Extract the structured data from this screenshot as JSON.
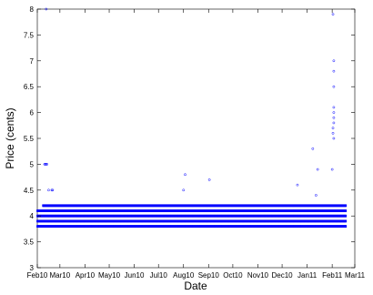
{
  "chart_data": {
    "type": "scatter",
    "xlabel": "Date",
    "ylabel": "Price (cents)",
    "ylim": [
      3,
      8
    ],
    "y_ticks": [
      "3",
      "3.5",
      "4",
      "4.5",
      "5",
      "5.5",
      "6",
      "6.5",
      "7",
      "7.5",
      "8"
    ],
    "xlim": [
      "2010-02-01",
      "2011-03-01"
    ],
    "x_ticks": [
      "Feb10",
      "Mar10",
      "Apr10",
      "May10",
      "Jun10",
      "Jul10",
      "Aug10",
      "Sep10",
      "Oct10",
      "Nov10",
      "Dec10",
      "Jan11",
      "Feb11",
      "Mar11"
    ],
    "x_tick_dates": [
      "2010-02-01",
      "2010-03-01",
      "2010-04-01",
      "2010-05-01",
      "2010-06-01",
      "2010-07-01",
      "2010-08-01",
      "2010-09-01",
      "2010-10-01",
      "2010-11-01",
      "2010-12-01",
      "2011-01-01",
      "2011-02-01",
      "2011-03-01"
    ],
    "grid": false,
    "marker_color": "#0000ff",
    "series": [
      {
        "points": [
          {
            "x": "2010-02-12",
            "y": 8.0
          },
          {
            "x": "2010-02-10",
            "y": 5.0
          },
          {
            "x": "2010-02-11",
            "y": 5.0
          },
          {
            "x": "2010-02-12",
            "y": 5.0
          },
          {
            "x": "2010-02-13",
            "y": 5.0
          },
          {
            "x": "2010-02-15",
            "y": 4.5
          },
          {
            "x": "2010-02-19",
            "y": 4.5
          },
          {
            "x": "2010-02-20",
            "y": 4.5
          },
          {
            "x": "2010-08-01",
            "y": 4.5
          },
          {
            "x": "2010-08-03",
            "y": 4.8
          },
          {
            "x": "2010-09-02",
            "y": 4.7
          },
          {
            "x": "2010-12-20",
            "y": 4.6
          },
          {
            "x": "2011-01-08",
            "y": 5.3
          },
          {
            "x": "2011-01-12",
            "y": 4.4
          },
          {
            "x": "2011-01-14",
            "y": 4.9
          },
          {
            "x": "2011-02-01",
            "y": 4.9
          },
          {
            "x": "2011-02-02",
            "y": 5.6
          },
          {
            "x": "2011-02-02",
            "y": 5.7
          },
          {
            "x": "2011-02-03",
            "y": 5.5
          },
          {
            "x": "2011-02-03",
            "y": 5.8
          },
          {
            "x": "2011-02-03",
            "y": 5.9
          },
          {
            "x": "2011-02-03",
            "y": 6.0
          },
          {
            "x": "2011-02-03",
            "y": 6.1
          },
          {
            "x": "2011-02-03",
            "y": 6.5
          },
          {
            "x": "2011-02-03",
            "y": 6.8
          },
          {
            "x": "2011-02-03",
            "y": 7.0
          },
          {
            "x": "2011-02-02",
            "y": 7.9
          }
        ],
        "bands": [
          {
            "y": 3.8,
            "x_start": "2010-02-01",
            "x_end": "2011-02-18"
          },
          {
            "y": 3.9,
            "x_start": "2010-02-01",
            "x_end": "2011-02-18"
          },
          {
            "y": 4.0,
            "x_start": "2010-02-01",
            "x_end": "2011-02-18"
          },
          {
            "y": 4.1,
            "x_start": "2010-02-01",
            "x_end": "2011-02-18"
          },
          {
            "y": 4.2,
            "x_start": "2010-02-08",
            "x_end": "2011-02-18"
          }
        ]
      }
    ]
  }
}
